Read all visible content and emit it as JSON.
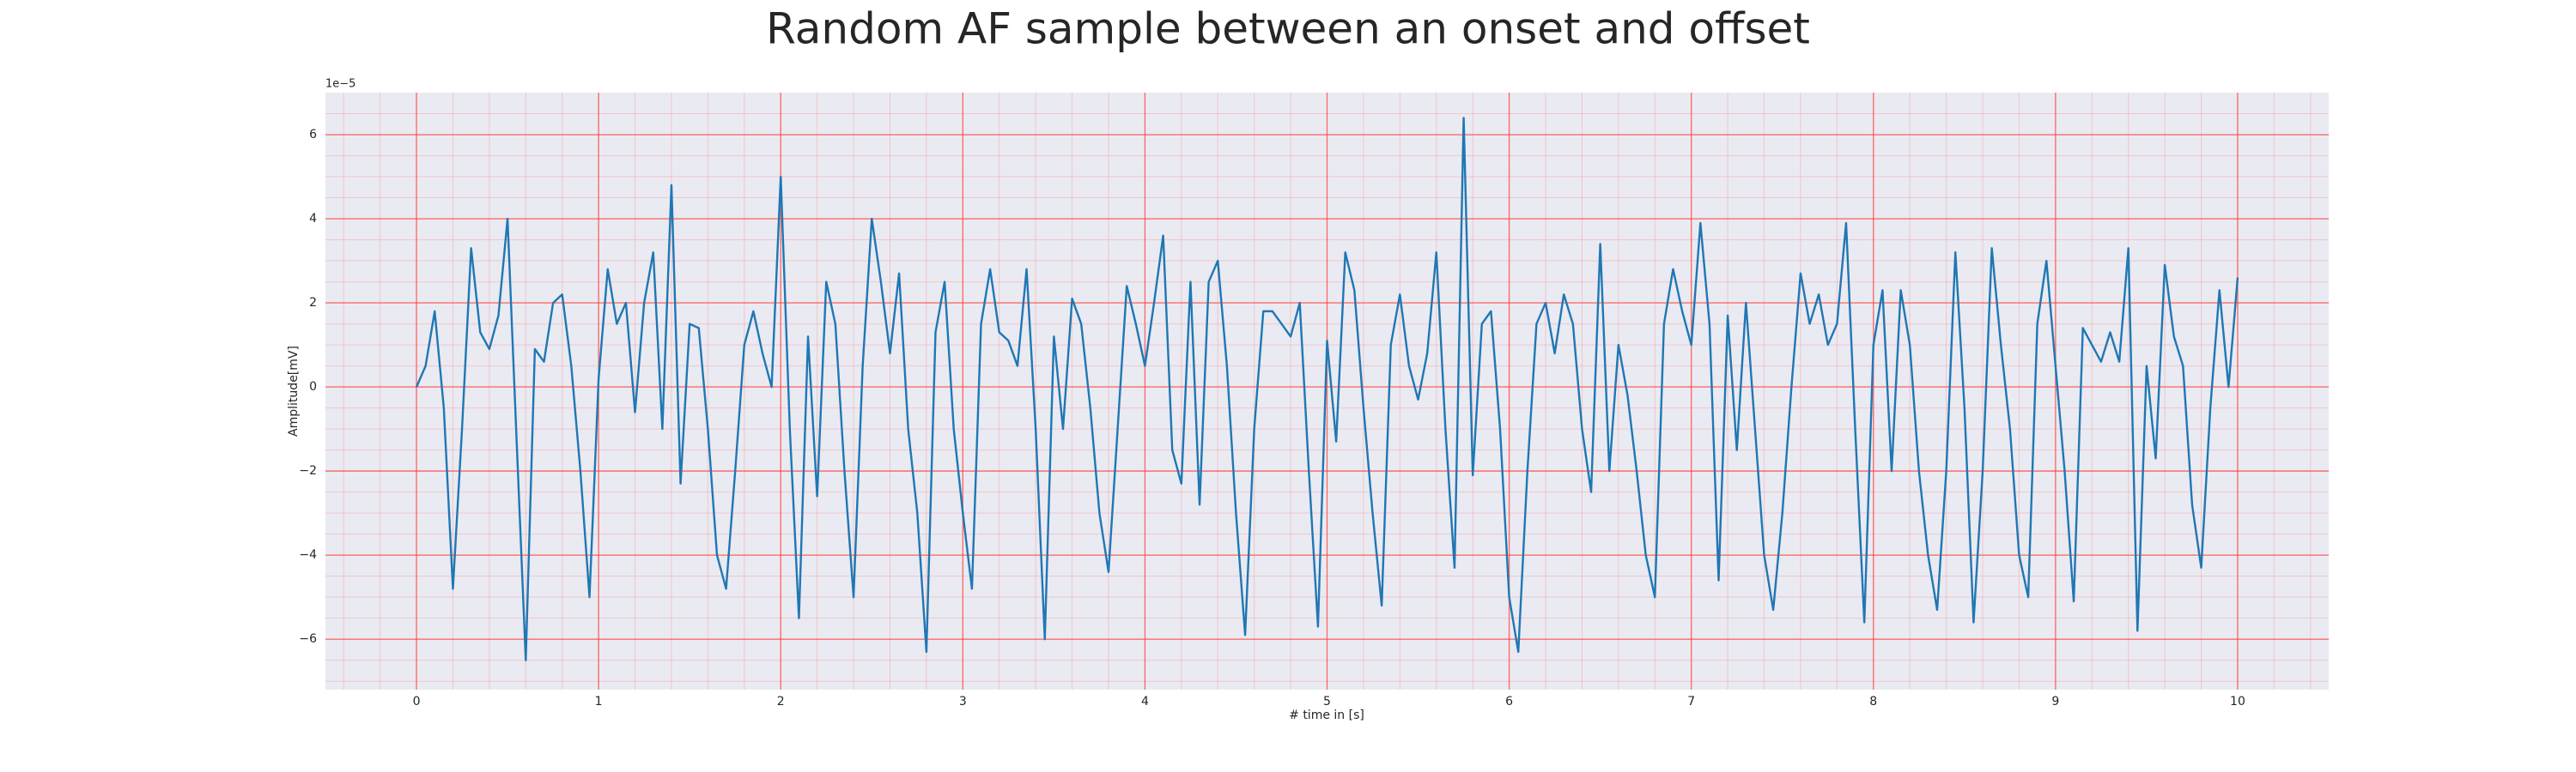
{
  "chart_data": {
    "type": "line",
    "title": "Random AF sample between an onset and offset",
    "xlabel": "# time in [s]",
    "ylabel": "Amplitude[mV]",
    "y_offset_label": "1e−5",
    "color": "#1f77b4",
    "background": "#eaeaf2",
    "grid": true,
    "grid_color": "#ff3b30",
    "minor_grid": true,
    "xlim": [
      -0.5,
      10.5
    ],
    "ylim": [
      -7.2,
      7
    ],
    "xticks": [
      0,
      1,
      2,
      3,
      4,
      5,
      6,
      7,
      8,
      9,
      10
    ],
    "yticks": [
      {
        "value": -6,
        "label": "−6"
      },
      {
        "value": -4,
        "label": "−4"
      },
      {
        "value": -2,
        "label": "−2"
      },
      0,
      2,
      4,
      6
    ],
    "xminorticks": [
      -0.4,
      -0.2,
      0.2,
      0.4,
      0.6,
      0.8,
      1.2,
      1.4,
      1.6,
      1.8,
      2.2,
      2.4,
      2.6,
      2.8,
      3.2,
      3.4,
      3.6,
      3.8,
      4.2,
      4.4,
      4.6,
      4.8,
      5.2,
      5.4,
      5.6,
      5.8,
      6.2,
      6.4,
      6.6,
      6.8,
      7.2,
      7.4,
      7.6,
      7.8,
      8.2,
      8.4,
      8.6,
      8.8,
      9.2,
      9.4,
      9.6,
      9.8,
      10.2,
      10.4
    ],
    "yminorticks": [
      -7,
      -6.5,
      -5.5,
      -5,
      -4.5,
      -3.5,
      -3,
      -2.5,
      -1.5,
      -1,
      -0.5,
      0.5,
      1,
      1.5,
      2.5,
      3,
      3.5,
      4.5,
      5,
      5.5,
      6.5
    ],
    "x": [
      0,
      0.05,
      0.1,
      0.15,
      0.2,
      0.25,
      0.3,
      0.35,
      0.4,
      0.45,
      0.5,
      0.55,
      0.6,
      0.65,
      0.7,
      0.75,
      0.8,
      0.85,
      0.9,
      0.95,
      1,
      1.05,
      1.1,
      1.15,
      1.2,
      1.25,
      1.3,
      1.35,
      1.4,
      1.45,
      1.5,
      1.55,
      1.6,
      1.65,
      1.7,
      1.75,
      1.8,
      1.85,
      1.9,
      1.95,
      2,
      2.05,
      2.1,
      2.15,
      2.2,
      2.25,
      2.3,
      2.35,
      2.4,
      2.45,
      2.5,
      2.55,
      2.6,
      2.65,
      2.7,
      2.75,
      2.8,
      2.85,
      2.9,
      2.95,
      3,
      3.05,
      3.1,
      3.15,
      3.2,
      3.25,
      3.3,
      3.35,
      3.4,
      3.45,
      3.5,
      3.55,
      3.6,
      3.65,
      3.7,
      3.75,
      3.8,
      3.85,
      3.9,
      3.95,
      4,
      4.05,
      4.1,
      4.15,
      4.2,
      4.25,
      4.3,
      4.35,
      4.4,
      4.45,
      4.5,
      4.55,
      4.6,
      4.65,
      4.7,
      4.75,
      4.8,
      4.85,
      4.9,
      4.95,
      5,
      5.05,
      5.1,
      5.15,
      5.2,
      5.25,
      5.3,
      5.35,
      5.4,
      5.45,
      5.5,
      5.55,
      5.6,
      5.65,
      5.7,
      5.75,
      5.8,
      5.85,
      5.9,
      5.95,
      6,
      6.05,
      6.1,
      6.15,
      6.2,
      6.25,
      6.3,
      6.35,
      6.4,
      6.45,
      6.5,
      6.55,
      6.6,
      6.65,
      6.7,
      6.75,
      6.8,
      6.85,
      6.9,
      6.95,
      7,
      7.05,
      7.1,
      7.15,
      7.2,
      7.25,
      7.3,
      7.35,
      7.4,
      7.45,
      7.5,
      7.55,
      7.6,
      7.65,
      7.7,
      7.75,
      7.8,
      7.85,
      7.9,
      7.95,
      8,
      8.05,
      8.1,
      8.15,
      8.2,
      8.25,
      8.3,
      8.35,
      8.4,
      8.45,
      8.5,
      8.55,
      8.6,
      8.65,
      8.7,
      8.75,
      8.8,
      8.85,
      8.9,
      8.95,
      9,
      9.05,
      9.1,
      9.15,
      9.2,
      9.25,
      9.3,
      9.35,
      9.4,
      9.45,
      9.5,
      9.55,
      9.6,
      9.65,
      9.7,
      9.75,
      9.8,
      9.85,
      9.9,
      9.95,
      10
    ],
    "values": [
      0,
      0.5,
      1.8,
      -0.5,
      -4.8,
      -1.0,
      3.3,
      1.3,
      0.9,
      1.7,
      4.0,
      -1.3,
      -6.5,
      0.9,
      0.6,
      2.0,
      2.2,
      0.5,
      -2.0,
      -5.0,
      0.2,
      2.8,
      1.5,
      2.0,
      -0.6,
      2.0,
      3.2,
      -1.0,
      4.8,
      -2.3,
      1.5,
      1.4,
      -1.0,
      -4.0,
      -4.8,
      -2.0,
      1.0,
      1.8,
      0.8,
      0.0,
      5.0,
      -1.0,
      -5.5,
      1.2,
      -2.6,
      2.5,
      1.5,
      -2.0,
      -5.0,
      0.5,
      4.0,
      2.5,
      0.8,
      2.7,
      -1.0,
      -3.0,
      -6.3,
      1.3,
      2.5,
      -1.0,
      -3.0,
      -4.8,
      1.5,
      2.8,
      1.3,
      1.1,
      0.5,
      2.8,
      -1.0,
      -6.0,
      1.2,
      -1.0,
      2.1,
      1.5,
      -0.5,
      -3.0,
      -4.4,
      -1.0,
      2.4,
      1.5,
      0.5,
      2.0,
      3.6,
      -1.5,
      -2.3,
      2.5,
      -2.8,
      2.5,
      3.0,
      0.5,
      -3.0,
      -5.9,
      -1.0,
      1.8,
      1.8,
      1.5,
      1.2,
      2.0,
      -2.0,
      -5.7,
      1.1,
      -1.3,
      3.2,
      2.3,
      -0.5,
      -3.0,
      -5.2,
      1.0,
      2.2,
      0.5,
      -0.3,
      0.8,
      3.2,
      -1.0,
      -4.3,
      6.4,
      -2.1,
      1.5,
      1.8,
      -1.0,
      -5.0,
      -6.3,
      -2.0,
      1.5,
      2.0,
      0.8,
      2.2,
      1.5,
      -1.0,
      -2.5,
      3.4,
      -2.0,
      1.0,
      -0.2,
      -2.0,
      -4.0,
      -5.0,
      1.5,
      2.8,
      1.8,
      1.0,
      3.9,
      1.5,
      -4.6,
      1.7,
      -1.5,
      2.0,
      -1.0,
      -4.0,
      -5.3,
      -3.0,
      0.0,
      2.7,
      1.5,
      2.2,
      1.0,
      1.5,
      3.9,
      -1.0,
      -5.6,
      1.0,
      2.3,
      -2.0,
      2.3,
      1.0,
      -2.0,
      -4.0,
      -5.3,
      -2.0,
      3.2,
      -0.5,
      -5.6,
      -2.0,
      3.3,
      1.0,
      -1.0,
      -4.0,
      -5.0,
      1.5,
      3.0,
      0.5,
      -2.0,
      -5.1,
      1.4,
      1.0,
      0.6,
      1.3,
      0.6,
      3.3,
      -5.8,
      0.5,
      -1.7,
      2.9,
      1.2,
      0.5,
      -2.8,
      -4.3,
      -0.5,
      2.3,
      0.0,
      2.6
    ]
  }
}
